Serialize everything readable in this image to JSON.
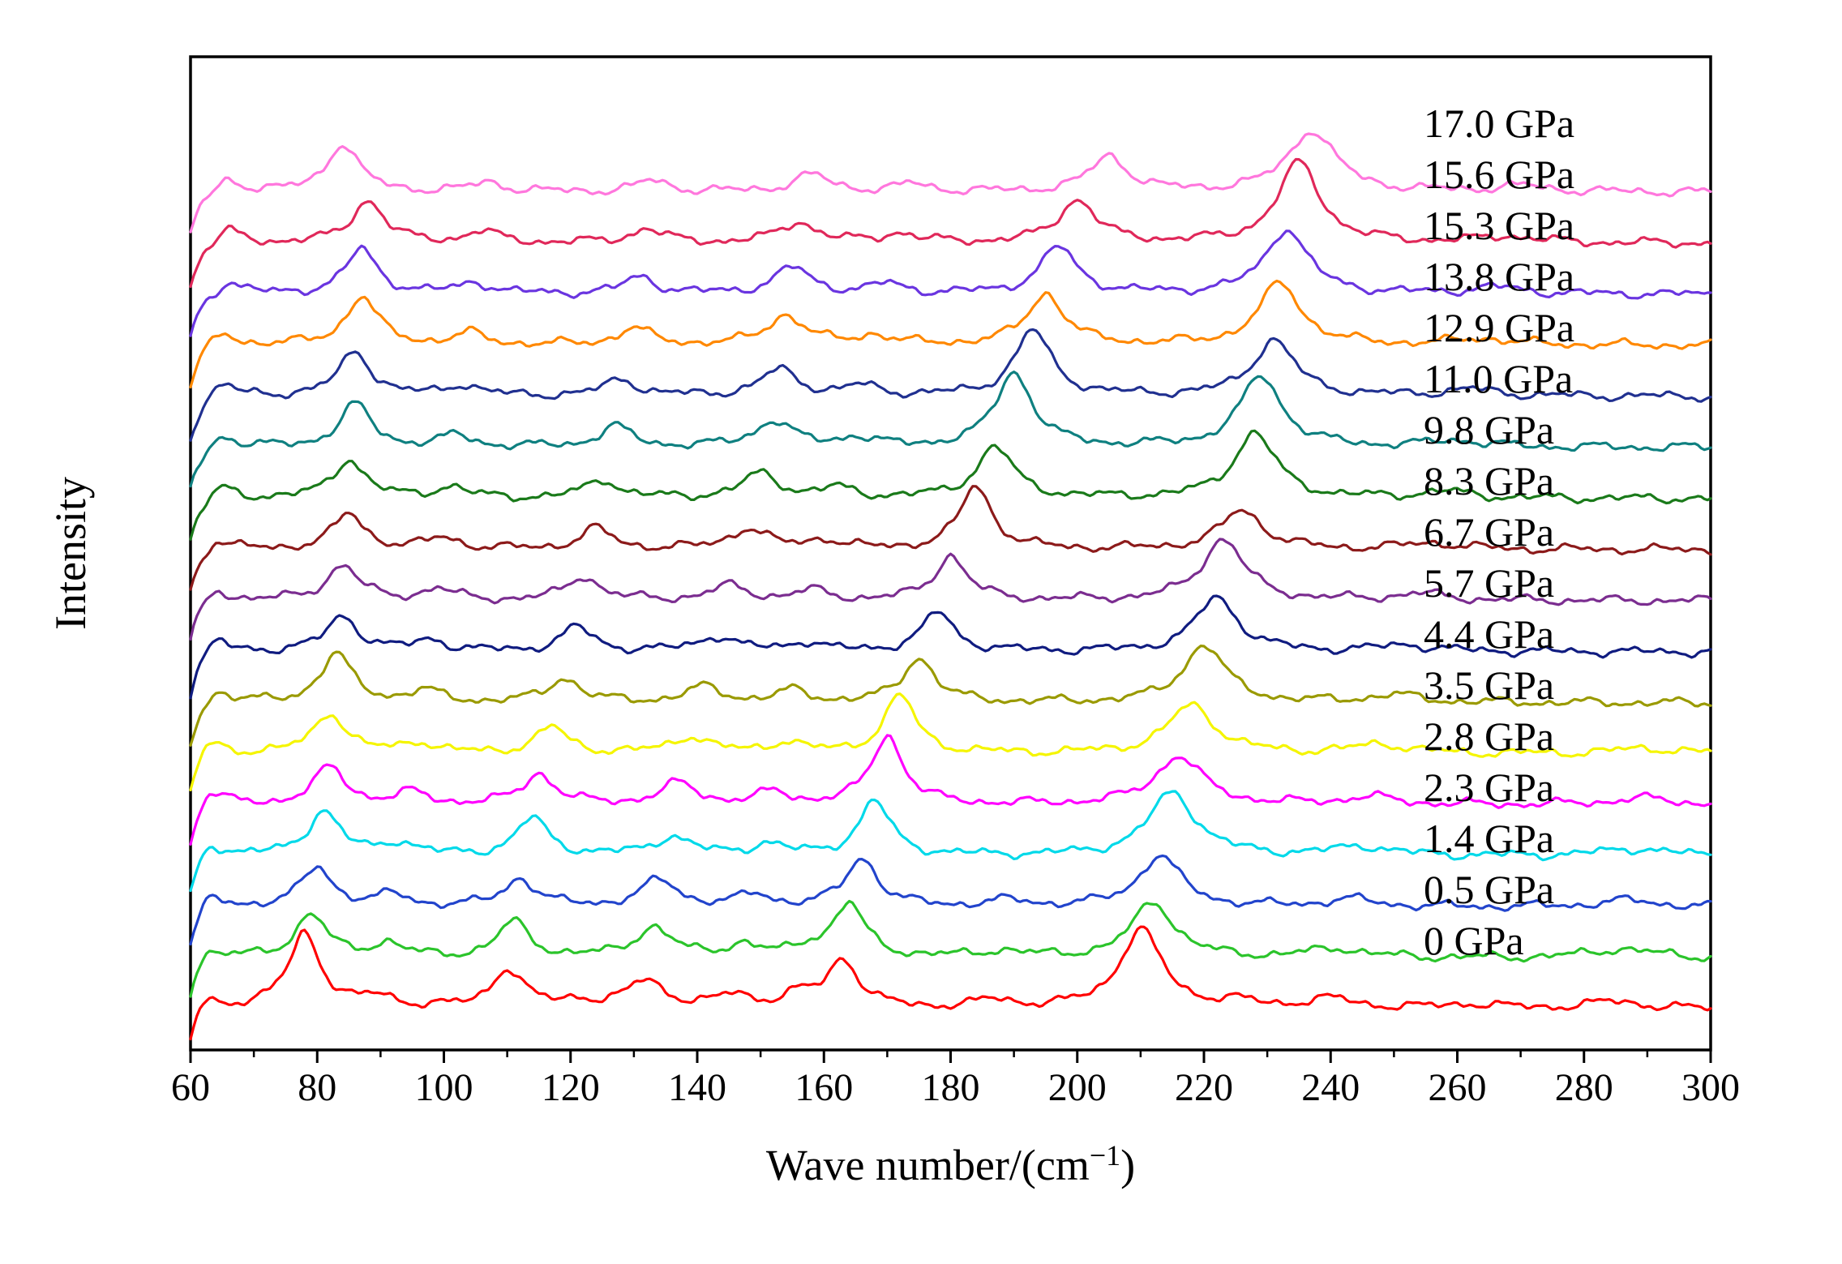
{
  "figure": {
    "ylabel": "Intensity",
    "xlabel": "Wave number/(cm⁻¹)",
    "xlabel_parts": {
      "main": "Wave number/(cm",
      "sup": "−1",
      "end": ")"
    }
  },
  "chart_data": {
    "type": "line",
    "title": "",
    "subtitle": "Raman spectra at increasing pressure, stacked with vertical offsets",
    "xlabel": "Wave number/(cm⁻¹)",
    "ylabel": "Intensity",
    "xlim": [
      60,
      300
    ],
    "x_ticks": [
      60,
      80,
      100,
      120,
      140,
      160,
      180,
      200,
      220,
      240,
      260,
      280,
      300
    ],
    "x_minor_step": 10,
    "grid": false,
    "legend_position": "labels-right-inside",
    "axis_color": "#000000",
    "background": "#ffffff",
    "y_units": "arbitrary (stacked offset per spectrum, bottom to top)",
    "series": [
      {
        "name": "0 GPa",
        "color": "#ff0000",
        "peaks": [
          [
            62,
            0.2,
            2.2
          ],
          [
            78,
            0.82,
            3.0
          ],
          [
            90,
            0.12,
            3.0
          ],
          [
            110,
            0.42,
            3.0
          ],
          [
            121,
            0.08,
            3.0
          ],
          [
            132,
            0.3,
            3.5
          ],
          [
            146,
            0.14,
            3.0
          ],
          [
            156,
            0.12,
            3.0
          ],
          [
            163,
            0.52,
            3.0
          ],
          [
            187,
            0.08,
            4.0
          ],
          [
            210,
            0.85,
            4.0
          ],
          [
            225,
            0.06,
            4.0
          ],
          [
            240,
            0.1,
            5.0
          ],
          [
            262,
            0.05,
            5.0
          ],
          [
            285,
            0.08,
            6.0
          ]
        ]
      },
      {
        "name": "0.5 GPa",
        "color": "#2bc42b",
        "peaks": [
          [
            62,
            0.16,
            2.2
          ],
          [
            79,
            0.46,
            3.0
          ],
          [
            91,
            0.15,
            3.0
          ],
          [
            111,
            0.38,
            3.0
          ],
          [
            133,
            0.32,
            3.5
          ],
          [
            147,
            0.13,
            3.0
          ],
          [
            158,
            0.1,
            3.0
          ],
          [
            164,
            0.56,
            3.0
          ],
          [
            188,
            0.07,
            4.0
          ],
          [
            212,
            0.6,
            4.0
          ],
          [
            241,
            0.1,
            5.0
          ],
          [
            286,
            0.1,
            6.0
          ]
        ]
      },
      {
        "name": "1.4 GPa",
        "color": "#2244cc",
        "peaks": [
          [
            63,
            0.15,
            2.2
          ],
          [
            80,
            0.42,
            3.0
          ],
          [
            92,
            0.12,
            3.0
          ],
          [
            112,
            0.3,
            3.0
          ],
          [
            134,
            0.28,
            3.5
          ],
          [
            149,
            0.12,
            3.0
          ],
          [
            166,
            0.52,
            3.0
          ],
          [
            189,
            0.06,
            4.0
          ],
          [
            213,
            0.55,
            4.0
          ],
          [
            243,
            0.08,
            5.0
          ],
          [
            287,
            0.07,
            6.0
          ]
        ]
      },
      {
        "name": "2.3 GPa",
        "color": "#00d9e9",
        "peaks": [
          [
            63,
            0.18,
            2.2
          ],
          [
            81,
            0.48,
            3.0
          ],
          [
            93,
            0.14,
            3.0
          ],
          [
            114,
            0.4,
            3.0
          ],
          [
            136,
            0.2,
            3.5
          ],
          [
            151,
            0.12,
            3.0
          ],
          [
            168,
            0.58,
            3.0
          ],
          [
            215,
            0.68,
            4.5
          ],
          [
            245,
            0.1,
            5.0
          ],
          [
            288,
            0.08,
            6.0
          ]
        ]
      },
      {
        "name": "2.8 GPa",
        "color": "#ff00ff",
        "peaks": [
          [
            63,
            0.2,
            2.2
          ],
          [
            82,
            0.4,
            3.0
          ],
          [
            95,
            0.12,
            3.0
          ],
          [
            115,
            0.33,
            3.0
          ],
          [
            137,
            0.22,
            3.5
          ],
          [
            152,
            0.12,
            3.0
          ],
          [
            170,
            0.74,
            3.0
          ],
          [
            216,
            0.52,
            4.5
          ],
          [
            246,
            0.08,
            5.0
          ],
          [
            289,
            0.07,
            6.0
          ]
        ]
      },
      {
        "name": "3.5 GPa",
        "color": "#f5f500",
        "peaks": [
          [
            63,
            0.18,
            2.2
          ],
          [
            82,
            0.44,
            3.0
          ],
          [
            96,
            0.12,
            3.0
          ],
          [
            117,
            0.28,
            3.0
          ],
          [
            139,
            0.18,
            3.5
          ],
          [
            154,
            0.12,
            3.0
          ],
          [
            172,
            0.62,
            3.0
          ],
          [
            218,
            0.52,
            4.5
          ],
          [
            248,
            0.1,
            5.0
          ],
          [
            290,
            0.06,
            6.0
          ]
        ]
      },
      {
        "name": "4.4 GPa",
        "color": "#9a9a00",
        "peaks": [
          [
            64,
            0.15,
            2.2
          ],
          [
            83,
            0.52,
            3.0
          ],
          [
            97,
            0.12,
            3.0
          ],
          [
            119,
            0.26,
            3.0
          ],
          [
            141,
            0.16,
            3.5
          ],
          [
            155,
            0.12,
            3.0
          ],
          [
            175,
            0.48,
            3.0
          ],
          [
            220,
            0.62,
            4.0
          ],
          [
            250,
            0.08,
            5.0
          ]
        ]
      },
      {
        "name": "5.7 GPa",
        "color": "#101c80",
        "peaks": [
          [
            64,
            0.14,
            2.2
          ],
          [
            84,
            0.38,
            3.0
          ],
          [
            98,
            0.12,
            3.0
          ],
          [
            121,
            0.26,
            3.0
          ],
          [
            143,
            0.16,
            3.5
          ],
          [
            157,
            0.1,
            3.0
          ],
          [
            178,
            0.42,
            3.0
          ],
          [
            222,
            0.58,
            4.0
          ],
          [
            252,
            0.07,
            5.0
          ]
        ]
      },
      {
        "name": "6.7 GPa",
        "color": "#7b2d90",
        "peaks": [
          [
            64,
            0.14,
            2.2
          ],
          [
            84,
            0.38,
            3.0
          ],
          [
            99,
            0.12,
            3.0
          ],
          [
            122,
            0.26,
            3.0
          ],
          [
            145,
            0.15,
            3.5
          ],
          [
            158,
            0.1,
            3.0
          ],
          [
            180,
            0.48,
            3.0
          ],
          [
            223,
            0.66,
            4.0
          ],
          [
            254,
            0.07,
            5.0
          ]
        ]
      },
      {
        "name": "8.3 GPa",
        "color": "#8c1a1a",
        "peaks": [
          [
            64,
            0.13,
            2.2
          ],
          [
            85,
            0.38,
            3.0
          ],
          [
            100,
            0.12,
            3.0
          ],
          [
            124,
            0.22,
            3.0
          ],
          [
            148,
            0.22,
            3.5
          ],
          [
            160,
            0.1,
            3.0
          ],
          [
            184,
            0.68,
            3.0
          ],
          [
            226,
            0.42,
            4.0
          ],
          [
            256,
            0.07,
            5.0
          ]
        ]
      },
      {
        "name": "9.8 GPa",
        "color": "#1a7a1a",
        "peaks": [
          [
            65,
            0.13,
            2.2
          ],
          [
            85,
            0.42,
            3.0
          ],
          [
            101,
            0.12,
            3.0
          ],
          [
            125,
            0.2,
            3.0
          ],
          [
            150,
            0.26,
            3.5
          ],
          [
            162,
            0.1,
            3.0
          ],
          [
            187,
            0.55,
            3.5
          ],
          [
            228,
            0.7,
            4.0
          ],
          [
            258,
            0.07,
            5.0
          ]
        ]
      },
      {
        "name": "11.0 GPa",
        "color": "#0f8080",
        "peaks": [
          [
            65,
            0.14,
            2.2
          ],
          [
            86,
            0.46,
            3.0
          ],
          [
            102,
            0.12,
            3.0
          ],
          [
            127,
            0.22,
            3.0
          ],
          [
            152,
            0.28,
            3.5
          ],
          [
            165,
            0.1,
            3.0
          ],
          [
            190,
            0.8,
            3.5
          ],
          [
            229,
            0.76,
            4.0
          ],
          [
            260,
            0.07,
            5.0
          ]
        ]
      },
      {
        "name": "12.9 GPa",
        "color": "#203090",
        "peaks": [
          [
            65,
            0.14,
            2.2
          ],
          [
            86,
            0.48,
            3.0
          ],
          [
            103,
            0.12,
            3.0
          ],
          [
            128,
            0.18,
            3.0
          ],
          [
            153,
            0.28,
            3.5
          ],
          [
            166,
            0.1,
            3.0
          ],
          [
            193,
            0.7,
            3.5
          ],
          [
            231,
            0.6,
            4.0
          ],
          [
            262,
            0.07,
            5.0
          ]
        ]
      },
      {
        "name": "13.8 GPa",
        "color": "#ff8800",
        "peaks": [
          [
            65,
            0.14,
            2.2
          ],
          [
            87,
            0.52,
            3.0
          ],
          [
            104,
            0.12,
            3.0
          ],
          [
            130,
            0.18,
            3.0
          ],
          [
            154,
            0.32,
            3.5
          ],
          [
            168,
            0.1,
            3.0
          ],
          [
            195,
            0.55,
            3.5
          ],
          [
            232,
            0.66,
            4.0
          ],
          [
            264,
            0.07,
            5.0
          ]
        ]
      },
      {
        "name": "15.3 GPa",
        "color": "#6a35e0",
        "peaks": [
          [
            66,
            0.14,
            2.2
          ],
          [
            87,
            0.48,
            3.0
          ],
          [
            105,
            0.12,
            3.0
          ],
          [
            131,
            0.18,
            3.0
          ],
          [
            155,
            0.28,
            3.5
          ],
          [
            170,
            0.1,
            3.0
          ],
          [
            197,
            0.5,
            3.5
          ],
          [
            233,
            0.7,
            4.0
          ],
          [
            266,
            0.07,
            5.0
          ]
        ]
      },
      {
        "name": "15.6 GPa",
        "color": "#e0285a",
        "peaks": [
          [
            66,
            0.14,
            2.2
          ],
          [
            88,
            0.46,
            3.0
          ],
          [
            106,
            0.12,
            3.0
          ],
          [
            132,
            0.15,
            3.0
          ],
          [
            156,
            0.22,
            3.5
          ],
          [
            172,
            0.1,
            3.0
          ],
          [
            200,
            0.46,
            3.5
          ],
          [
            235,
            0.86,
            4.0
          ],
          [
            268,
            0.07,
            5.0
          ]
        ]
      },
      {
        "name": "17.0 GPa",
        "color": "#ff77dd",
        "peaks": [
          [
            66,
            0.14,
            2.2
          ],
          [
            84,
            0.52,
            3.0
          ],
          [
            107,
            0.1,
            3.0
          ],
          [
            133,
            0.12,
            3.0
          ],
          [
            158,
            0.18,
            3.5
          ],
          [
            174,
            0.08,
            3.0
          ],
          [
            205,
            0.38,
            3.5
          ],
          [
            237,
            0.66,
            4.5
          ],
          [
            270,
            0.06,
            5.0
          ]
        ]
      }
    ],
    "peak_format": "[center_wavenumber_cm-1, relative_height_0to1, half_width_cm-1]"
  }
}
